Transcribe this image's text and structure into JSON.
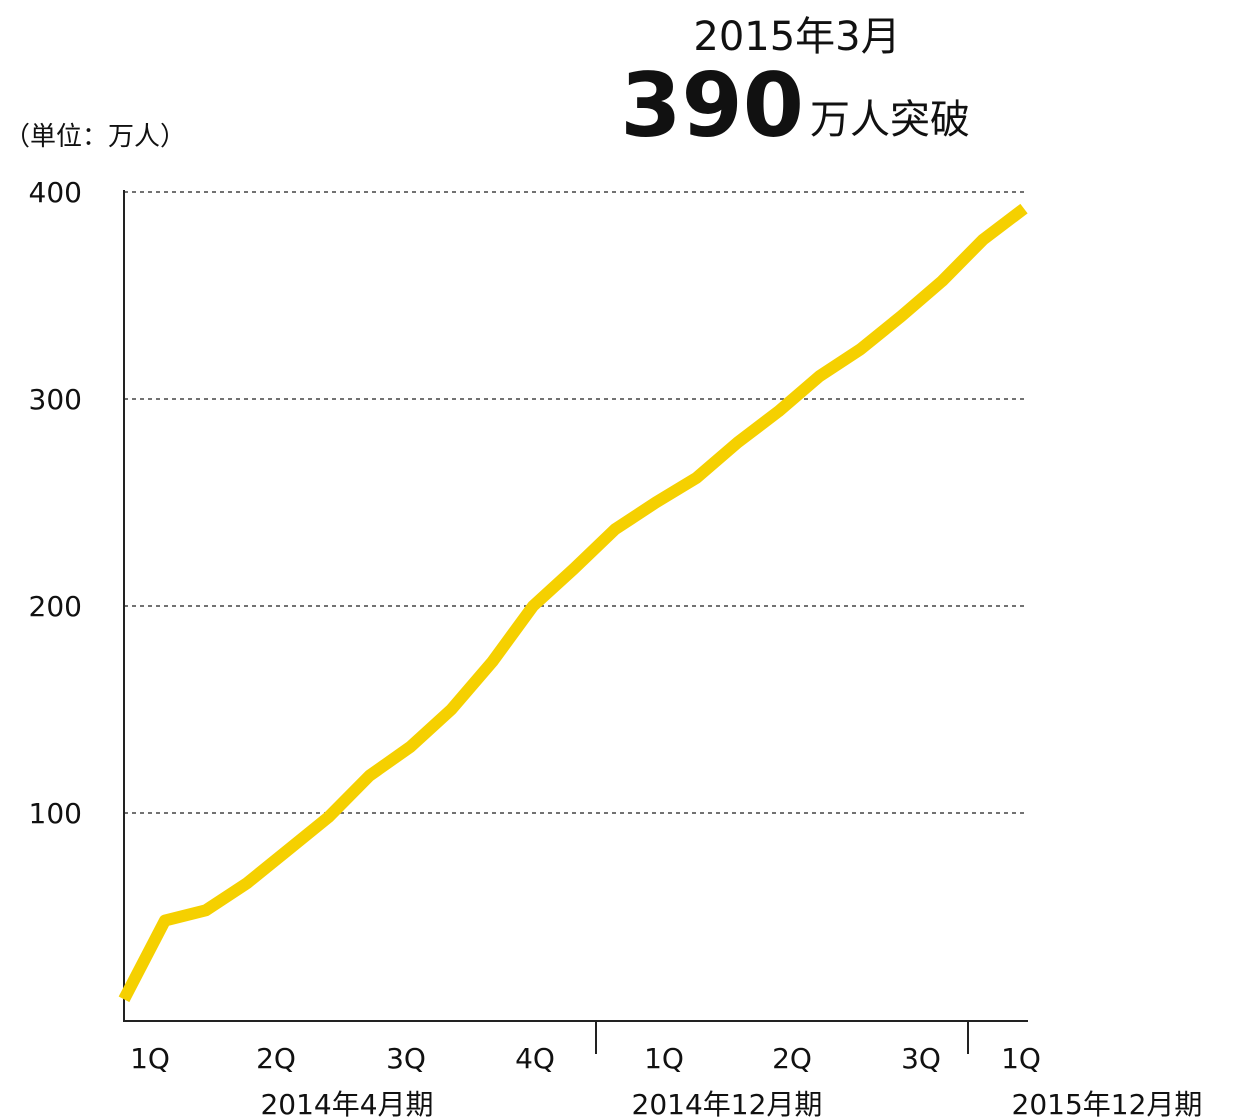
{
  "headline": {
    "date": "2015年3月",
    "value": "390",
    "suffix": "万人突破"
  },
  "colors": {
    "line": "#F5D000",
    "axis": "#222222",
    "grid": "#444444"
  },
  "chart_data": {
    "type": "line",
    "unit_label": "（単位：万人）",
    "ylim": [
      0,
      400
    ],
    "yticks": [
      "100",
      "200",
      "300",
      "400"
    ],
    "grid": "horizontal-dashed",
    "xticks": [
      "1Q",
      "2Q",
      "3Q",
      "4Q",
      "1Q",
      "2Q",
      "3Q",
      "1Q"
    ],
    "periods": [
      "2014年4月期",
      "2014年12月期",
      "2015年12月期"
    ],
    "series": [
      {
        "values": [
          10,
          48,
          53,
          66,
          82,
          98,
          118,
          132,
          150,
          173,
          200,
          218,
          237,
          250,
          262,
          279,
          294,
          311,
          324,
          340,
          357,
          377,
          392
        ]
      }
    ]
  }
}
